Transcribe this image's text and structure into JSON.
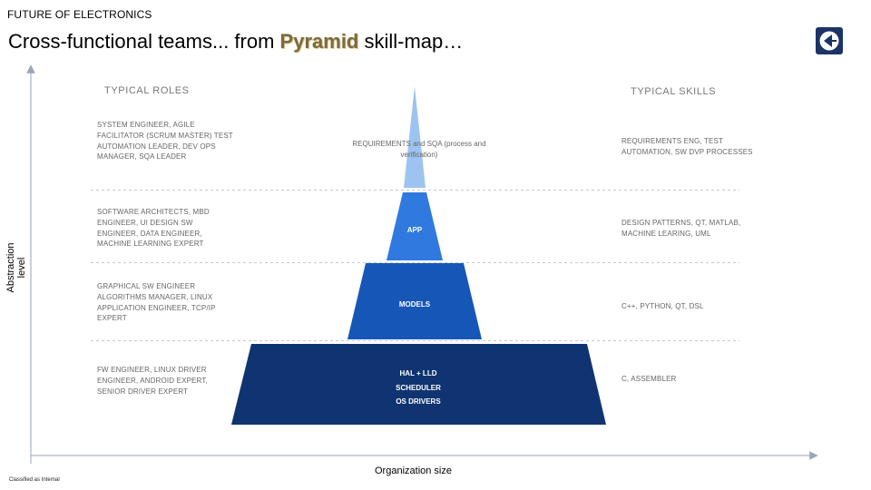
{
  "header": {
    "kicker": "FUTURE OF ELECTRONICS",
    "title_prefix": "Cross-functional teams... from ",
    "title_highlight": "Pyramid",
    "title_suffix": " skill-map…"
  },
  "columns": {
    "roles_heading": "TYPICAL ROLES",
    "skills_heading": "TYPICAL SKILLS"
  },
  "axes": {
    "y_label": "Abstraction level",
    "x_label": "Organization size"
  },
  "tiers": [
    {
      "pyramid_label": "REQUIREMENTS and SQA (process and verification)",
      "roles": "SYSTEM ENGINEER, AGILE FACILITATOR (SCRUM MASTER) TEST AUTOMATION LEADER, DEV OPS MANAGER, SQA LEADER",
      "skills": "REQUIREMENTS ENG, TEST AUTOMATION, SW DVP PROCESSES",
      "color": "#9dc3f0"
    },
    {
      "pyramid_label": "APP",
      "roles": "SOFTWARE ARCHITECTS, MBD ENGINEER, UI DESIGN SW ENGINEER, DATA ENGINEER, MACHINE LEARNING EXPERT",
      "skills": "DESIGN PATTERNS, QT, MATLAB, MACHINE LEARING, UML",
      "color": "#2f79df"
    },
    {
      "pyramid_label": "MODELS",
      "roles": "GRAPHICAL SW ENGINEER ALGORITHMS MANAGER, LINUX APPLICATION ENGINEER,  TCP/IP EXPERT",
      "skills": "C++, PYTHON, QT, DSL",
      "color": "#1656b6"
    },
    {
      "pyramid_label_lines": [
        "HAL + LLD",
        "SCHEDULER",
        "OS DRIVERS"
      ],
      "roles": "FW ENGINEER, LINUX DRIVER ENGINEER,  ANDROID EXPERT, SENIOR DRIVER EXPERT",
      "skills": "C, ASSEMBLER",
      "color": "#0f3471"
    }
  ],
  "footer": {
    "classification": "Classified as Internal"
  },
  "logo": {
    "icon": "electrolux-logo-icon",
    "color": "#1b3466"
  }
}
